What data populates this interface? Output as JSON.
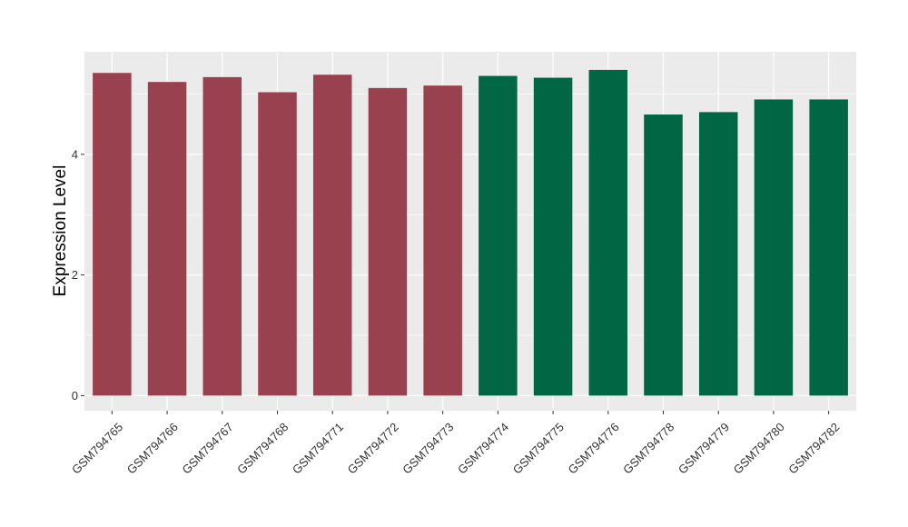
{
  "chart_data": {
    "type": "bar",
    "title": "",
    "xlabel": "",
    "ylabel": "Expression Level",
    "ylim": [
      -0.25,
      5.7
    ],
    "yticks": [
      0,
      2,
      4
    ],
    "grid": true,
    "legend": "none",
    "categories": [
      "GSM794765",
      "GSM794766",
      "GSM794767",
      "GSM794768",
      "GSM794771",
      "GSM794772",
      "GSM794773",
      "GSM794774",
      "GSM794775",
      "GSM794776",
      "GSM794778",
      "GSM794779",
      "GSM794780",
      "GSM794782"
    ],
    "values": [
      5.35,
      5.2,
      5.28,
      5.03,
      5.32,
      5.1,
      5.14,
      5.3,
      5.27,
      5.4,
      4.66,
      4.7,
      4.91,
      4.91
    ],
    "bar_colors": [
      "#9a4150",
      "#9a4150",
      "#9a4150",
      "#9a4150",
      "#9a4150",
      "#9a4150",
      "#9a4150",
      "#006644",
      "#006644",
      "#006644",
      "#006644",
      "#006644",
      "#006644",
      "#006644"
    ],
    "panel_background": "#ebebeb",
    "grid_color": "#ffffff"
  }
}
